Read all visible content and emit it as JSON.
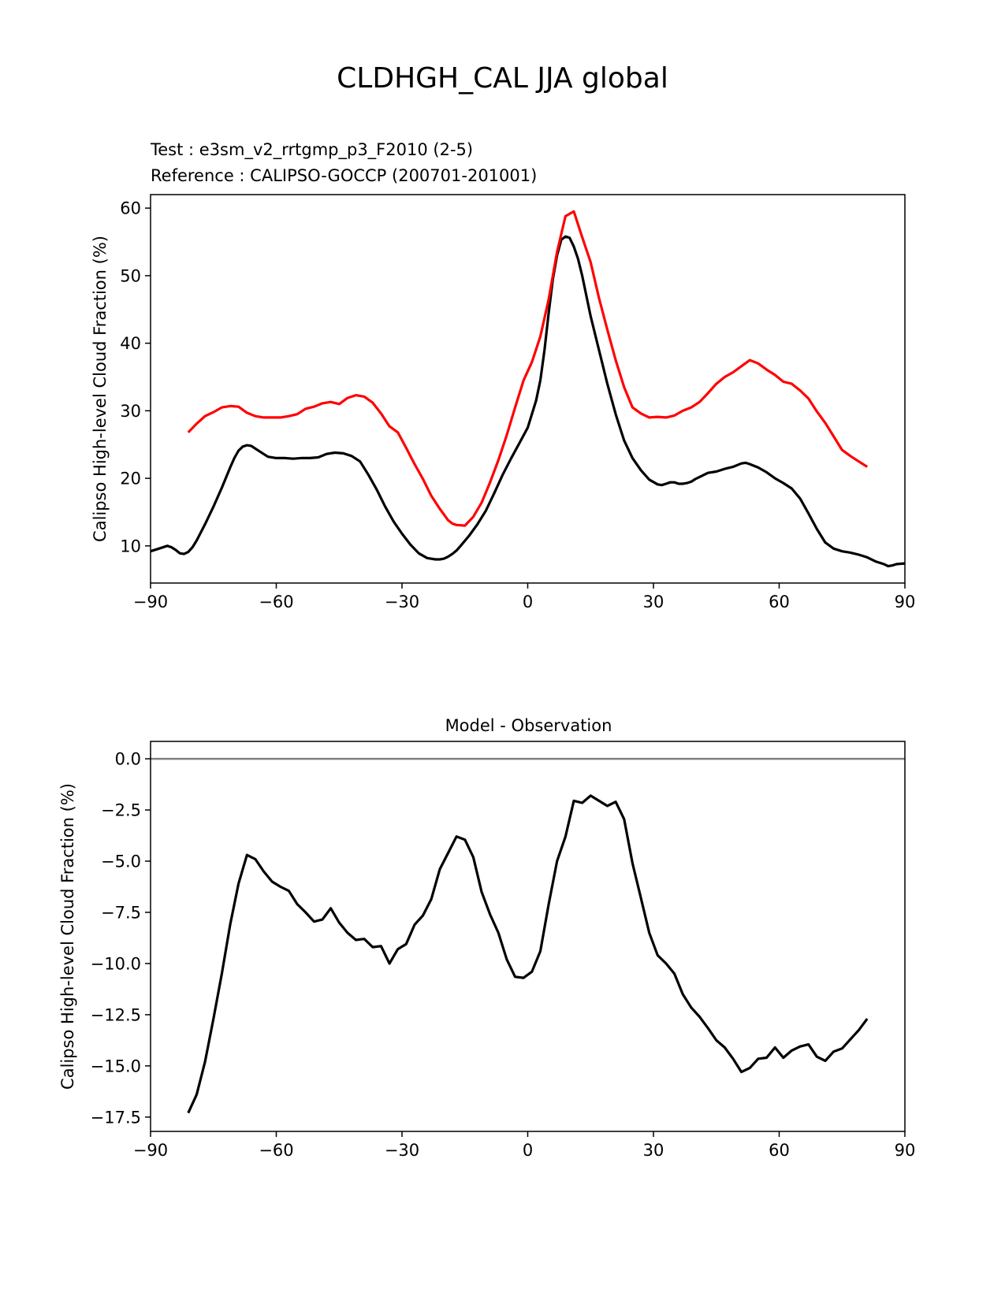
{
  "figure": {
    "title": "CLDHGH_CAL JJA global"
  },
  "chart_data": [
    {
      "type": "line",
      "test_label": "Test : e3sm_v2_rrtgmp_p3_F2010 (2-5)",
      "ref_label": "Reference : CALIPSO-GOCCP (200701-201001)",
      "xlabel": "",
      "ylabel": "Calipso High-level Cloud Fraction (%)",
      "xlim": [
        -90,
        90
      ],
      "ylim": [
        4.5,
        62
      ],
      "xticks": [
        -90,
        -60,
        -30,
        0,
        30,
        60,
        90
      ],
      "xtick_labels": [
        "−90",
        "−60",
        "−30",
        "0",
        "30",
        "60",
        "90"
      ],
      "yticks": [
        10,
        20,
        30,
        40,
        50,
        60
      ],
      "ytick_labels": [
        "10",
        "20",
        "30",
        "40",
        "50",
        "60"
      ],
      "colors": {
        "test": "#000000",
        "reference": "#ff0000"
      },
      "series": [
        {
          "name": "test",
          "x": [
            -90,
            -88,
            -86,
            -85,
            -84,
            -83,
            -82,
            -81,
            -80,
            -79,
            -77,
            -75,
            -73,
            -71,
            -70,
            -69,
            -68,
            -67,
            -66,
            -64,
            -62,
            -60,
            -58,
            -56,
            -54,
            -52,
            -50,
            -48,
            -46,
            -44,
            -42,
            -40,
            -38,
            -36,
            -34,
            -32,
            -30,
            -28,
            -26,
            -24,
            -22,
            -21,
            -20,
            -19,
            -18,
            -17,
            -16,
            -14,
            -12,
            -10,
            -8,
            -6,
            -4,
            -2,
            0,
            2,
            3,
            4,
            5,
            6,
            7,
            8,
            9,
            10,
            11,
            12,
            13,
            15,
            17,
            19,
            21,
            23,
            25,
            27,
            29,
            31,
            32,
            33,
            34,
            35,
            36,
            37,
            38,
            39,
            40,
            42,
            43,
            45,
            47,
            49,
            51,
            52,
            53,
            55,
            57,
            59,
            61,
            63,
            65,
            67,
            69,
            71,
            73,
            75,
            77,
            79,
            81,
            83,
            85,
            86,
            87,
            88,
            90
          ],
          "y": [
            9.2,
            9.6,
            10.0,
            9.8,
            9.4,
            8.9,
            8.8,
            9.1,
            9.8,
            10.8,
            13.2,
            15.8,
            18.6,
            21.6,
            23.0,
            24.1,
            24.7,
            24.9,
            24.8,
            24.0,
            23.2,
            23.0,
            23.0,
            22.9,
            23.0,
            23.0,
            23.1,
            23.6,
            23.8,
            23.7,
            23.3,
            22.5,
            20.5,
            18.3,
            15.8,
            13.6,
            11.8,
            10.2,
            8.9,
            8.2,
            8.0,
            8.0,
            8.1,
            8.4,
            8.8,
            9.3,
            10.0,
            11.5,
            13.2,
            15.2,
            17.8,
            20.5,
            22.9,
            25.2,
            27.5,
            31.5,
            34.5,
            39.0,
            44.5,
            49.5,
            53.0,
            55.3,
            55.8,
            55.6,
            54.3,
            52.5,
            50.0,
            44.0,
            39.0,
            34.0,
            29.5,
            25.6,
            23.0,
            21.2,
            19.8,
            19.1,
            19.0,
            19.2,
            19.4,
            19.4,
            19.2,
            19.2,
            19.3,
            19.5,
            19.9,
            20.5,
            20.8,
            21.0,
            21.4,
            21.7,
            22.2,
            22.3,
            22.1,
            21.6,
            20.9,
            20.0,
            19.3,
            18.5,
            17.0,
            14.8,
            12.5,
            10.5,
            9.6,
            9.2,
            9.0,
            8.7,
            8.3,
            7.7,
            7.3,
            7.0,
            7.1,
            7.3,
            7.4
          ]
        },
        {
          "name": "reference",
          "x": [
            -81,
            -79,
            -77,
            -75,
            -73,
            -71,
            -69,
            -67,
            -65,
            -63,
            -61,
            -59,
            -57,
            -55,
            -53,
            -51,
            -49,
            -47,
            -45,
            -43,
            -41,
            -39,
            -37,
            -35,
            -33,
            -31,
            -29,
            -27,
            -25,
            -23,
            -21,
            -19,
            -18,
            -17,
            -15,
            -13,
            -11,
            -9,
            -7,
            -5,
            -3,
            -1,
            1,
            3,
            5,
            7,
            9,
            11,
            13,
            15,
            17,
            19,
            21,
            23,
            25,
            27,
            29,
            31,
            33,
            35,
            37,
            39,
            41,
            43,
            45,
            47,
            49,
            51,
            53,
            55,
            57,
            59,
            61,
            63,
            65,
            67,
            69,
            71,
            73,
            75,
            77,
            79,
            81
          ],
          "y": [
            26.8,
            28.1,
            29.2,
            29.8,
            30.5,
            30.7,
            30.6,
            29.7,
            29.2,
            29.0,
            29.0,
            29.0,
            29.2,
            29.5,
            30.3,
            30.6,
            31.1,
            31.3,
            31.0,
            31.9,
            32.3,
            32.1,
            31.2,
            29.6,
            27.7,
            26.8,
            24.5,
            22.1,
            19.9,
            17.4,
            15.5,
            13.8,
            13.3,
            13.1,
            13.0,
            14.3,
            16.4,
            19.4,
            22.7,
            26.4,
            30.5,
            34.5,
            37.2,
            41.0,
            46.5,
            53.5,
            58.8,
            59.5,
            55.7,
            52.0,
            46.7,
            42.0,
            37.5,
            33.5,
            30.5,
            29.6,
            29.0,
            29.1,
            29.0,
            29.3,
            30.0,
            30.5,
            31.3,
            32.6,
            34.0,
            35.0,
            35.7,
            36.6,
            37.5,
            37.0,
            36.1,
            35.3,
            34.3,
            34.0,
            33.0,
            31.8,
            29.9,
            28.2,
            26.2,
            24.2,
            23.3,
            22.5,
            21.7
          ]
        }
      ]
    },
    {
      "type": "line",
      "title": "Model - Observation",
      "xlabel": "",
      "ylabel": "Calipso High-level Cloud Fraction (%)",
      "xlim": [
        -90,
        90
      ],
      "ylim": [
        -18.2,
        0.85
      ],
      "xticks": [
        -90,
        -60,
        -30,
        0,
        30,
        60,
        90
      ],
      "xtick_labels": [
        "−90",
        "−60",
        "−30",
        "0",
        "30",
        "60",
        "90"
      ],
      "yticks": [
        0,
        -2.5,
        -5,
        -7.5,
        -10,
        -12.5,
        -15,
        -17.5
      ],
      "ytick_labels": [
        "0.0",
        "−2.5",
        "−5.0",
        "−7.5",
        "−10.0",
        "−12.5",
        "−15.0",
        "−17.5"
      ],
      "colors": {
        "difference": "#000000",
        "zero_line": "#808080"
      },
      "zero_line": 0,
      "series": [
        {
          "name": "difference",
          "x": [
            -81,
            -79,
            -77,
            -75,
            -73,
            -71,
            -69,
            -67,
            -65,
            -63,
            -61,
            -59,
            -57,
            -55,
            -53,
            -51,
            -49,
            -47,
            -45,
            -43,
            -41,
            -39,
            -37,
            -35,
            -33,
            -31,
            -29,
            -27,
            -25,
            -23,
            -21,
            -19,
            -17,
            -15,
            -13,
            -11,
            -9,
            -7,
            -5,
            -3,
            -1,
            1,
            3,
            5,
            7,
            9,
            11,
            13,
            15,
            17,
            19,
            21,
            23,
            25,
            27,
            29,
            31,
            33,
            35,
            37,
            39,
            41,
            43,
            45,
            47,
            49,
            51,
            53,
            55,
            57,
            59,
            61,
            63,
            65,
            67,
            69,
            71,
            73,
            75,
            77,
            79,
            81
          ],
          "y": [
            -17.3,
            -16.4,
            -14.8,
            -12.7,
            -10.5,
            -8.1,
            -6.1,
            -4.7,
            -4.9,
            -5.5,
            -6.0,
            -6.25,
            -6.45,
            -7.1,
            -7.5,
            -7.95,
            -7.85,
            -7.3,
            -8.0,
            -8.5,
            -8.85,
            -8.8,
            -9.2,
            -9.15,
            -10.0,
            -9.3,
            -9.05,
            -8.1,
            -7.65,
            -6.85,
            -5.4,
            -4.6,
            -3.8,
            -3.95,
            -4.8,
            -6.5,
            -7.6,
            -8.5,
            -9.8,
            -10.65,
            -10.7,
            -10.4,
            -9.4,
            -7.1,
            -5.0,
            -3.8,
            -2.05,
            -2.15,
            -1.8,
            -2.05,
            -2.3,
            -2.1,
            -2.95,
            -5.1,
            -6.8,
            -8.5,
            -9.6,
            -10.0,
            -10.5,
            -11.5,
            -12.15,
            -12.6,
            -13.15,
            -13.75,
            -14.1,
            -14.65,
            -15.3,
            -15.1,
            -14.65,
            -14.6,
            -14.1,
            -14.6,
            -14.25,
            -14.05,
            -13.95,
            -14.55,
            -14.75,
            -14.3,
            -14.15,
            -13.7,
            -13.25,
            -12.7
          ]
        }
      ]
    }
  ]
}
